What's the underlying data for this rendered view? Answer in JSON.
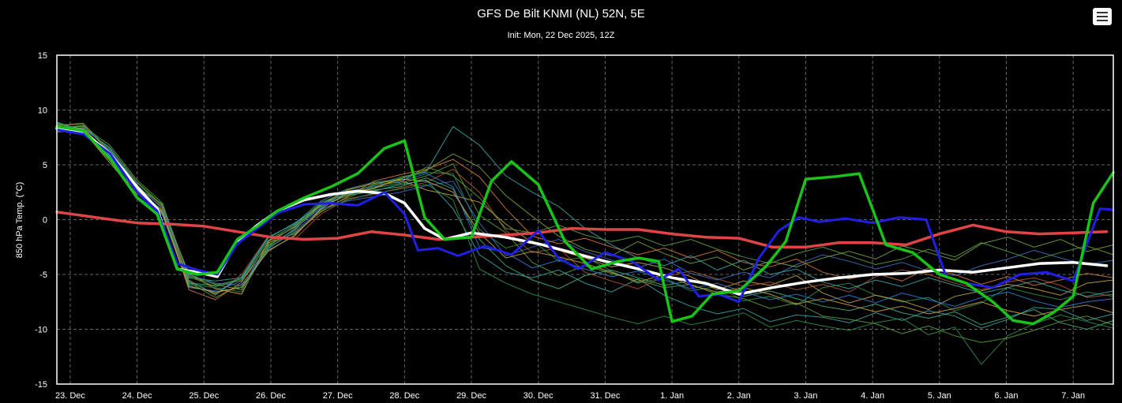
{
  "header": {
    "title": "GFS De Bilt KNMI (NL) 52N, 5E",
    "subtitle": "Init: Mon, 22 Dec 2025, 12Z"
  },
  "menu": {
    "icon": "hamburger-menu-icon"
  },
  "chart_data": {
    "type": "line",
    "ylabel": "850 hPa Temp. (°C)",
    "ylim": [
      -15,
      15
    ],
    "yticks": [
      -15,
      -10,
      -5,
      0,
      5,
      10,
      15
    ],
    "xlim": [
      -0.2,
      15.6
    ],
    "xtick_positions": [
      0,
      1,
      2,
      3,
      4,
      5,
      6,
      7,
      8,
      9,
      10,
      11,
      12,
      13,
      14,
      15
    ],
    "xticks": [
      "23. Dec",
      "24. Dec",
      "25. Dec",
      "26. Dec",
      "27. Dec",
      "28. Dec",
      "29. Dec",
      "30. Dec",
      "31. Dec",
      "1. Jan",
      "2. Jan",
      "3. Jan",
      "4. Jan",
      "5. Jan",
      "6. Jan",
      "7. Jan"
    ],
    "x_unit_note": "x values are days after 23 Dec 00Z",
    "grid": true,
    "grid_style": "dashed",
    "colors": {
      "background": "#000000",
      "grid": "#666666",
      "axis": "#ffffff",
      "control": "#18c418",
      "operational": "#1f1fe6",
      "mean": "#ffffff",
      "climatology": "#e04545"
    },
    "ensemble_colors": [
      "#3aa3a3",
      "#2e8f4a",
      "#5a9e3a",
      "#c8a040",
      "#b05530",
      "#3a6fc0",
      "#7aa03a",
      "#44b07a",
      "#d07a3a",
      "#2a7fd0"
    ],
    "series": [
      {
        "role": "climatology",
        "width": 3.5,
        "x": [
          -0.2,
          0.5,
          1,
          1.5,
          2,
          2.5,
          3,
          3.5,
          4,
          4.5,
          5,
          5.5,
          6,
          6.5,
          7,
          7.5,
          8,
          8.5,
          9,
          9.5,
          10,
          10.5,
          11,
          11.5,
          12,
          12.5,
          13,
          13.5,
          14,
          14.5,
          15,
          15.5
        ],
        "y": [
          0.7,
          0.1,
          -0.3,
          -0.4,
          -0.6,
          -1.1,
          -1.6,
          -1.8,
          -1.7,
          -1.1,
          -1.4,
          -1.8,
          -1.6,
          -1.4,
          -1.2,
          -0.8,
          -0.9,
          -0.9,
          -1.3,
          -1.6,
          -1.7,
          -2.5,
          -2.5,
          -2.1,
          -2.1,
          -2.3,
          -1.3,
          -0.5,
          -1.1,
          -1.3,
          -1.2,
          -1.1
        ]
      },
      {
        "role": "mean",
        "width": 3.5,
        "x": [
          -0.2,
          0.2,
          0.6,
          1,
          1.3,
          1.6,
          1.9,
          2.2,
          2.5,
          2.8,
          3.1,
          3.5,
          3.9,
          4.3,
          4.7,
          5,
          5.3,
          5.6,
          6,
          6.5,
          7,
          7.5,
          8,
          8.5,
          9,
          9.5,
          10,
          10.5,
          11,
          11.5,
          12,
          12.5,
          13,
          13.5,
          14,
          14.5,
          15,
          15.5
        ],
        "y": [
          8.3,
          8.0,
          6.0,
          3.0,
          1.0,
          -4.5,
          -4.8,
          -5.2,
          -2.0,
          -0.5,
          0.8,
          1.8,
          2.3,
          2.6,
          2.4,
          1.5,
          -0.8,
          -1.8,
          -1.2,
          -1.6,
          -2.2,
          -3.0,
          -3.8,
          -4.5,
          -5.3,
          -5.8,
          -6.8,
          -6.2,
          -5.7,
          -5.3,
          -5.0,
          -4.9,
          -4.6,
          -4.8,
          -4.4,
          -4.0,
          -3.9,
          -4.2
        ]
      },
      {
        "role": "control",
        "width": 3.5,
        "x": [
          -0.2,
          0.2,
          0.6,
          1,
          1.3,
          1.6,
          1.9,
          2.2,
          2.5,
          2.8,
          3.1,
          3.5,
          3.9,
          4.3,
          4.7,
          5,
          5.3,
          5.6,
          6,
          6.3,
          6.6,
          7,
          7.4,
          7.8,
          8.2,
          8.5,
          8.8,
          9,
          9.3,
          9.6,
          10,
          10.4,
          10.7,
          11,
          11.4,
          11.8,
          12.2,
          12.6,
          13,
          13.4,
          13.8,
          14.1,
          14.4,
          14.7,
          15,
          15.3,
          15.6
        ],
        "y": [
          8.5,
          8.1,
          5.5,
          2.0,
          0.5,
          -4.5,
          -5.0,
          -4.8,
          -1.8,
          -0.6,
          0.8,
          2.0,
          3.0,
          4.2,
          6.5,
          7.2,
          0.2,
          -1.8,
          -1.6,
          3.5,
          5.3,
          3.2,
          -2.0,
          -4.5,
          -3.8,
          -3.5,
          -3.8,
          -9.3,
          -8.8,
          -6.8,
          -6.5,
          -4.3,
          -2.0,
          3.7,
          3.9,
          4.2,
          -2.3,
          -3.0,
          -5.0,
          -5.8,
          -7.5,
          -9.2,
          -9.5,
          -8.5,
          -7.0,
          1.5,
          4.3
        ]
      },
      {
        "role": "operational",
        "width": 3,
        "x": [
          -0.2,
          0.2,
          0.6,
          1,
          1.3,
          1.6,
          1.9,
          2.2,
          2.5,
          2.8,
          3.1,
          3.5,
          3.9,
          4.3,
          4.7,
          5,
          5.2,
          5.5,
          5.8,
          6.2,
          6.6,
          7,
          7.3,
          7.6,
          8,
          8.4,
          8.8,
          9.1,
          9.4,
          9.7,
          10,
          10.3,
          10.6,
          10.9,
          11.2,
          11.6,
          12,
          12.4,
          12.8,
          13.1,
          13.4,
          13.8,
          14.2,
          14.6,
          15,
          15.4,
          15.6
        ],
        "y": [
          8.2,
          7.8,
          6.0,
          2.5,
          0.8,
          -4.0,
          -4.6,
          -5.0,
          -2.2,
          -0.8,
          0.6,
          1.4,
          1.5,
          1.3,
          2.5,
          0.5,
          -2.8,
          -2.6,
          -3.3,
          -2.4,
          -3.2,
          -1.0,
          -3.5,
          -4.5,
          -3.0,
          -3.8,
          -5.5,
          -4.5,
          -7.0,
          -6.8,
          -7.5,
          -3.5,
          -1.0,
          0.2,
          -0.2,
          0.1,
          -0.3,
          0.2,
          0.0,
          -5.2,
          -5.8,
          -6.2,
          -5.0,
          -4.8,
          -5.6,
          1.0,
          0.9
        ]
      }
    ],
    "ensemble": [
      {
        "y": [
          8.8,
          8.2,
          5.8,
          2.8,
          0.6,
          -5.3,
          -5.6,
          -5.3,
          -1.7,
          -0.3,
          1.2,
          2.2,
          2.6,
          3.2,
          3.6,
          1.0,
          -3.2,
          -4.8,
          -5.3,
          -4.6,
          -5.8,
          -6.6,
          -5.4,
          -6.9,
          -7.9,
          -8.6,
          -8.1,
          -9.3,
          -8.7,
          -8.9,
          -9.4,
          -8.5,
          -9.2,
          -8.3,
          -8.8,
          -9.9,
          -9.1,
          -8.0,
          -8.2,
          -9.2,
          -8.6
        ]
      },
      {
        "y": [
          8.9,
          7.8,
          6.4,
          3.4,
          1.2,
          -6.0,
          -6.7,
          -6.1,
          -2.3,
          -1.0,
          1.6,
          2.4,
          3.1,
          3.9,
          4.3,
          4.2,
          -0.9,
          -2.6,
          -1.9,
          -3.8,
          -3.4,
          -4.7,
          -5.8,
          -5.3,
          -6.5,
          -6.1,
          -7.4,
          -7.0,
          -7.8,
          -6.2,
          -5.8,
          -6.9,
          -7.5,
          -7.1,
          -8.3,
          -7.6,
          -6.2,
          -6.8,
          -7.3,
          -6.6,
          -7.0
        ]
      },
      {
        "y": [
          8.4,
          8.5,
          6.8,
          3.7,
          1.5,
          -5.7,
          -7.1,
          -5.9,
          -2.9,
          -1.4,
          0.9,
          2.0,
          2.9,
          3.3,
          4.0,
          5.1,
          0.4,
          -1.2,
          -3.9,
          -5.1,
          -4.2,
          -4.9,
          -5.5,
          -6.2,
          -5.9,
          -6.8,
          -7.2,
          -8.1,
          -7.6,
          -8.8,
          -9.1,
          -9.5,
          -10.4,
          -9.7,
          -10.6,
          -11.2,
          -10.8,
          -10.1,
          -9.3,
          -8.8,
          -9.6
        ]
      },
      {
        "y": [
          8.0,
          8.1,
          5.2,
          2.4,
          0.9,
          -4.9,
          -6.3,
          -6.8,
          -2.0,
          -0.7,
          1.4,
          2.7,
          3.3,
          3.6,
          2.7,
          2.2,
          1.6,
          -0.4,
          -2.1,
          -2.8,
          -3.5,
          -4.3,
          -3.9,
          -4.4,
          -5.2,
          -6.4,
          -5.6,
          -6.0,
          -5.1,
          -6.7,
          -7.6,
          -6.9,
          -7.4,
          -8.2,
          -7.0,
          -6.5,
          -5.9,
          -6.3,
          -6.9,
          -5.8,
          -5.5
        ]
      },
      {
        "y": [
          8.6,
          8.7,
          6.1,
          3.1,
          1.1,
          -5.5,
          -6.9,
          -5.0,
          -1.5,
          -1.8,
          0.5,
          1.9,
          2.3,
          2.9,
          3.4,
          4.6,
          2.5,
          -1.0,
          -3.0,
          -2.6,
          -4.8,
          -5.6,
          -6.3,
          -5.2,
          -4.7,
          -5.4,
          -6.1,
          -5.7,
          -6.4,
          -5.9,
          -6.6,
          -5.2,
          -4.6,
          -5.0,
          -5.8,
          -6.4,
          -5.7,
          -5.3,
          -6.0,
          -7.1,
          -6.8
        ]
      },
      {
        "y": [
          8.1,
          7.9,
          5.6,
          2.2,
          0.4,
          -6.2,
          -6.5,
          -5.6,
          -2.6,
          -1.1,
          1.0,
          1.7,
          2.1,
          2.5,
          3.1,
          3.5,
          -0.3,
          -3.3,
          -2.5,
          -1.8,
          -2.9,
          -3.7,
          -4.4,
          -3.6,
          -4.9,
          -5.5,
          -4.8,
          -5.3,
          -4.1,
          -3.2,
          -3.8,
          -4.5,
          -3.9,
          -4.7,
          -5.1,
          -4.2,
          -3.6,
          -2.8,
          -3.5,
          -4.1,
          -3.7
        ]
      },
      {
        "y": [
          8.7,
          8.3,
          6.6,
          3.5,
          1.3,
          -5.1,
          -5.9,
          -6.4,
          -2.4,
          -0.9,
          1.3,
          2.5,
          2.8,
          3.8,
          4.5,
          6.0,
          4.8,
          2.2,
          0.3,
          -1.5,
          -2.7,
          -3.3,
          -2.0,
          -3.1,
          -4.0,
          -3.4,
          -4.6,
          -3.8,
          -4.3,
          -3.5,
          -2.9,
          -3.6,
          -2.4,
          -3.0,
          -3.7,
          -2.2,
          -1.6,
          -2.5,
          -1.8,
          -2.9,
          -2.3
        ]
      },
      {
        "y": [
          8.3,
          8.6,
          6.2,
          2.9,
          0.7,
          -5.8,
          -6.0,
          -5.4,
          -1.9,
          -0.5,
          1.5,
          2.3,
          2.7,
          3.0,
          3.8,
          2.8,
          -1.8,
          -4.2,
          -5.5,
          -6.3,
          -5.1,
          -4.6,
          -5.3,
          -6.0,
          -5.6,
          -6.2,
          -7.0,
          -6.5,
          -7.2,
          -7.9,
          -8.3,
          -7.7,
          -8.5,
          -9.0,
          -8.4,
          -9.6,
          -8.9,
          -8.2,
          -9.4,
          -10.0,
          -9.2
        ]
      },
      {
        "y": [
          8.5,
          8.0,
          5.4,
          2.6,
          0.8,
          -6.4,
          -7.3,
          -5.7,
          -2.1,
          -1.3,
          0.7,
          2.1,
          3.5,
          4.1,
          4.6,
          5.5,
          3.9,
          1.0,
          -1.5,
          -2.2,
          -1.7,
          -2.5,
          -3.2,
          -2.6,
          -3.5,
          -2.8,
          -3.9,
          -4.3,
          -3.6,
          -4.8,
          -5.4,
          -4.9,
          -5.6,
          -4.4,
          -5.0,
          -5.9,
          -5.2,
          -6.0,
          -5.5,
          -4.9,
          -5.3
        ]
      },
      {
        "y": [
          8.2,
          8.4,
          6.5,
          3.2,
          1.0,
          -5.0,
          -5.8,
          -6.0,
          -2.7,
          -0.8,
          1.1,
          2.6,
          3.0,
          3.5,
          4.2,
          3.0,
          -2.5,
          -3.0,
          -4.4,
          -3.7,
          -4.5,
          -5.2,
          -4.7,
          -5.5,
          -6.3,
          -5.8,
          -6.6,
          -7.3,
          -6.8,
          -7.5,
          -6.9,
          -7.6,
          -6.7,
          -7.3,
          -7.9,
          -7.1,
          -6.6,
          -7.4,
          -8.0,
          -7.5,
          -7.2
        ]
      },
      {
        "y": [
          8.9,
          8.1,
          5.9,
          2.5,
          0.5,
          -5.6,
          -6.8,
          -5.2,
          -1.6,
          -0.4,
          1.7,
          2.8,
          3.4,
          3.7,
          4.4,
          8.5,
          6.8,
          4.0,
          2.5,
          1.2,
          -0.8,
          -2.3,
          -3.5,
          -4.2,
          -3.3,
          -4.6,
          -3.7,
          -5.0,
          -4.5,
          -5.7,
          -6.3,
          -5.5,
          -6.1,
          -5.3,
          -6.0,
          -6.7,
          -6.2,
          -5.6,
          -6.4,
          -7.0,
          -6.5
        ]
      },
      {
        "y": [
          8.0,
          8.2,
          5.7,
          2.7,
          0.9,
          -5.9,
          -6.2,
          -6.6,
          -2.5,
          -1.2,
          0.8,
          1.8,
          2.4,
          2.8,
          3.2,
          1.8,
          -4.5,
          -5.8,
          -6.8,
          -7.5,
          -8.2,
          -8.9,
          -9.5,
          -8.8,
          -9.6,
          -9.1,
          -8.5,
          -9.8,
          -9.2,
          -9.7,
          -10.1,
          -9.4,
          -9.0,
          -10.5,
          -9.8,
          -13.2,
          -10.6,
          -9.5,
          -8.7,
          -9.3,
          -9.9
        ]
      },
      {
        "y": [
          8.6,
          8.8,
          6.3,
          3.0,
          1.4,
          -5.2,
          -6.1,
          -5.5,
          -2.2,
          -0.6,
          1.3,
          2.2,
          3.2,
          3.4,
          4.8,
          4.0,
          2.0,
          -0.8,
          -1.2,
          -0.5,
          -1.4,
          -2.0,
          -1.5,
          -2.4,
          -1.8,
          -2.7,
          -3.4,
          -4.0,
          -3.1,
          -2.5,
          -3.3,
          -4.1,
          -3.6,
          -2.7,
          -3.4,
          -2.1,
          -2.9,
          -3.7,
          -3.0,
          -2.4,
          -3.2
        ]
      },
      {
        "y": [
          8.4,
          8.3,
          6.0,
          2.8,
          0.6,
          -6.1,
          -6.6,
          -6.2,
          -2.8,
          -1.5,
          1.0,
          2.4,
          2.9,
          3.7,
          3.5,
          2.5,
          -1.2,
          -3.5,
          -2.9,
          -3.4,
          -4.0,
          -4.8,
          -5.7,
          -5.0,
          -6.0,
          -6.6,
          -6.2,
          -6.8,
          -7.7,
          -7.2,
          -7.8,
          -8.4,
          -7.9,
          -8.6,
          -8.1,
          -7.5,
          -8.3,
          -8.8,
          -8.2,
          -7.8,
          -8.5
        ]
      }
    ]
  }
}
